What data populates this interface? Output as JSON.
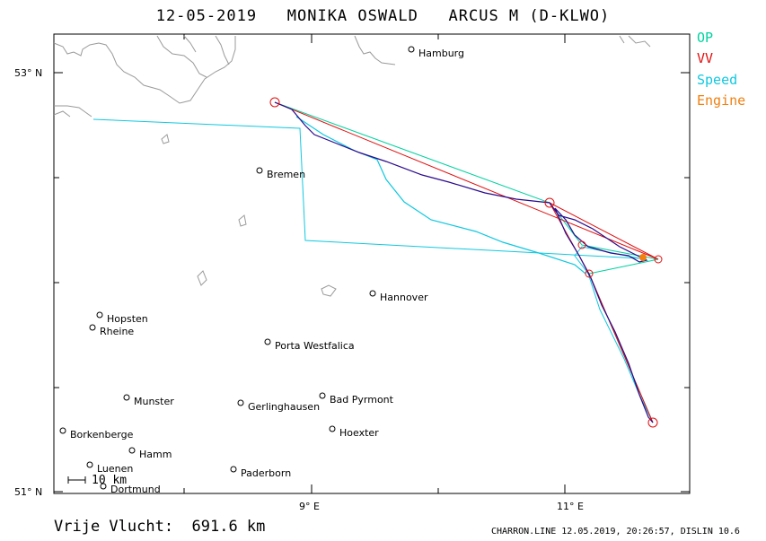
{
  "title": "12-05-2019   MONIKA OSWALD   ARCUS M (D-KLWO)",
  "legend": [
    {
      "label": "OP",
      "color": "#00d2a0"
    },
    {
      "label": "VV",
      "color": "#e01010"
    },
    {
      "label": "Speed",
      "color": "#10c8e0"
    },
    {
      "label": "Engine",
      "color": "#f08010"
    }
  ],
  "axes": {
    "lat_labels": [
      "53° N",
      "51° N"
    ],
    "lon_labels": [
      "9° E",
      "11° E"
    ]
  },
  "cities": [
    {
      "name": "Hamburg"
    },
    {
      "name": "Bremen"
    },
    {
      "name": "Hannover"
    },
    {
      "name": "Hopsten"
    },
    {
      "name": "Rheine"
    },
    {
      "name": "Porta Westfalica"
    },
    {
      "name": "Munster"
    },
    {
      "name": "Gerlinghausen"
    },
    {
      "name": "Bad Pyrmont"
    },
    {
      "name": "Borkenberge"
    },
    {
      "name": "Hoexter"
    },
    {
      "name": "Hamm"
    },
    {
      "name": "Luenen"
    },
    {
      "name": "Paderborn"
    },
    {
      "name": "Dortmund"
    }
  ],
  "scale_label": "10 km",
  "footer": {
    "distance": "Vrije Vlucht:  691.6 km",
    "credit": "CHARRON.LINE 12.05.2019, 20:26:57, DISLIN 10.6"
  }
}
